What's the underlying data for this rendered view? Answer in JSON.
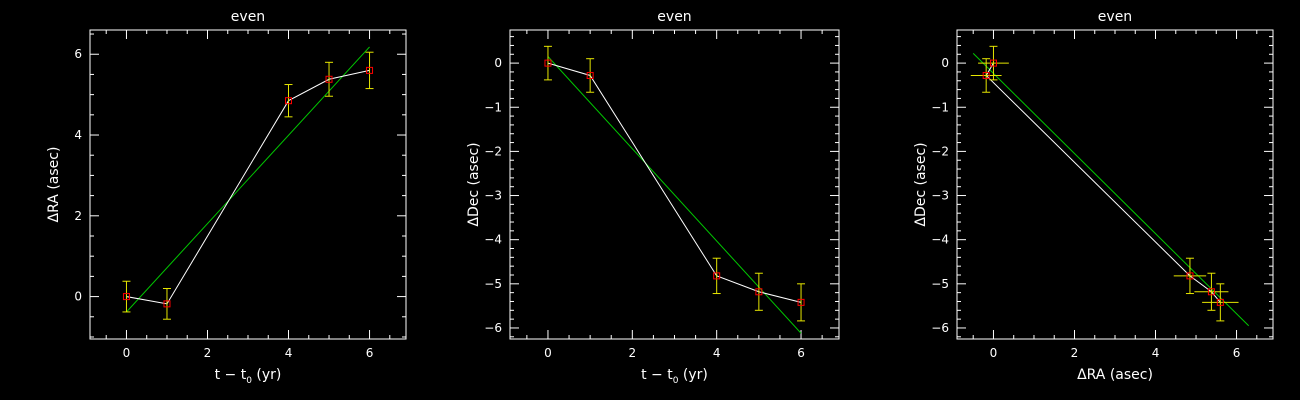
{
  "chart_data": [
    {
      "type": "line",
      "title": "even",
      "xlabel": "t − t",
      "xlabel_sub": "0",
      "xlabel_tail": " (yr)",
      "ylabel": "ΔRA (asec)",
      "xlim": [
        -0.9,
        6.9
      ],
      "ylim": [
        -1.05,
        6.6
      ],
      "xticks": [
        0,
        2,
        4,
        6
      ],
      "yticks": [
        0,
        2,
        4,
        6
      ],
      "grid": false,
      "series": [
        {
          "x": [
            0,
            1,
            4,
            5,
            6
          ],
          "y": [
            0.0,
            -0.18,
            4.85,
            5.38,
            5.6
          ],
          "yerr": [
            0.38,
            0.38,
            0.4,
            0.42,
            0.45
          ],
          "xerr": [
            0,
            0,
            0,
            0,
            0
          ]
        }
      ],
      "fit": {
        "x": [
          0.0,
          6.0
        ],
        "y": [
          -0.38,
          6.18
        ]
      }
    },
    {
      "type": "line",
      "title": "even",
      "xlabel": "t − t",
      "xlabel_sub": "0",
      "xlabel_tail": " (yr)",
      "ylabel": "ΔDec (asec)",
      "xlim": [
        -0.9,
        6.9
      ],
      "ylim": [
        -6.25,
        0.75
      ],
      "xticks": [
        0,
        2,
        4,
        6
      ],
      "yticks": [
        0,
        -1,
        -2,
        -3,
        -4,
        -5,
        -6
      ],
      "grid": false,
      "series": [
        {
          "x": [
            0,
            1,
            4,
            5,
            6
          ],
          "y": [
            0.0,
            -0.28,
            -4.82,
            -5.18,
            -5.42
          ],
          "yerr": [
            0.38,
            0.38,
            0.4,
            0.42,
            0.42
          ],
          "xerr": [
            0,
            0,
            0,
            0,
            0
          ]
        }
      ],
      "fit": {
        "x": [
          0.0,
          6.0
        ],
        "y": [
          0.15,
          -6.12
        ]
      }
    },
    {
      "type": "scatter",
      "title": "even",
      "xlabel": "ΔRA (asec)",
      "ylabel": "ΔDec (asec)",
      "xlim": [
        -0.9,
        6.9
      ],
      "ylim": [
        -6.25,
        0.75
      ],
      "xticks": [
        0,
        2,
        4,
        6
      ],
      "yticks": [
        0,
        -1,
        -2,
        -3,
        -4,
        -5,
        -6
      ],
      "grid": false,
      "series": [
        {
          "x": [
            0.0,
            -0.18,
            4.85,
            5.38,
            5.6
          ],
          "y": [
            0.0,
            -0.28,
            -4.82,
            -5.18,
            -5.42
          ],
          "yerr": [
            0.38,
            0.38,
            0.4,
            0.42,
            0.42
          ],
          "xerr": [
            0.38,
            0.38,
            0.4,
            0.42,
            0.45
          ]
        }
      ],
      "fit": {
        "x": [
          -0.5,
          6.3
        ],
        "y": [
          0.22,
          -5.95
        ]
      }
    }
  ],
  "colors": {
    "background": "#000000",
    "axes": "#ffffff",
    "data_line": "#ffffff",
    "fit_line": "#00c800",
    "error_bars": "#e6e600",
    "markers": "#ff0000"
  }
}
